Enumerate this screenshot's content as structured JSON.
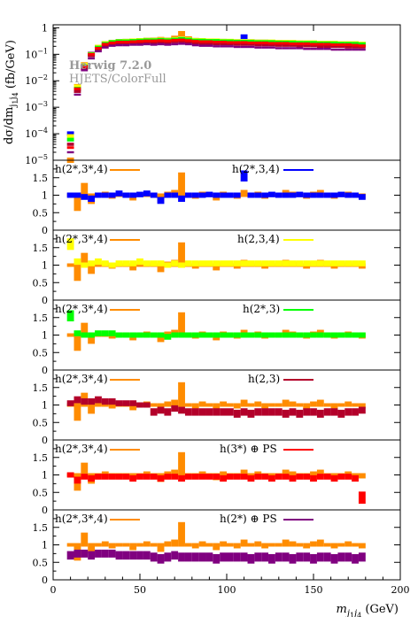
{
  "generator": {
    "line1": "Herwig 7.2.0",
    "line2": "HJETS/ColorFull"
  },
  "colors": {
    "reference": "#ff8c00",
    "blue": "#0000ff",
    "yellow": "#ffff00",
    "green": "#00ff00",
    "crimson": "#b3002a",
    "red": "#ff0000",
    "purple": "#800080"
  },
  "chart_data": [
    {
      "type": "histogram",
      "panel": "main",
      "ylabel": "dσ/dm_{j1 j4} (fb/GeV)",
      "yscale": "log",
      "ylim": [
        1e-05,
        1.3
      ],
      "yticks": [
        "10^{-5}",
        "10^{-4}",
        "10^{-3}",
        "10^{-2}",
        "10^{-1}",
        "1"
      ],
      "xlim": [
        0,
        200
      ],
      "bin_width": 4,
      "x_start": 8,
      "series": [
        {
          "color_key": "reference",
          "values": [
            1e-05,
            0.006,
            0.04,
            0.1,
            0.18,
            0.25,
            0.28,
            0.3,
            0.3,
            0.31,
            0.32,
            0.33,
            0.34,
            0.36,
            0.34,
            0.4,
            0.6,
            0.38,
            0.33,
            0.32,
            0.31,
            0.31,
            0.3,
            0.3,
            0.29,
            0.29,
            0.29,
            0.28,
            0.28,
            0.27,
            0.27,
            0.27,
            0.26,
            0.26,
            0.26,
            0.25,
            0.25,
            0.24,
            0.24,
            0.24,
            0.23,
            0.23,
            0.23
          ]
        },
        {
          "color_key": "blue",
          "values": [
            0.0001,
            0.005,
            0.035,
            0.1,
            0.18,
            0.25,
            0.28,
            0.3,
            0.31,
            0.32,
            0.33,
            0.34,
            0.34,
            0.35,
            0.34,
            0.36,
            0.38,
            0.36,
            0.33,
            0.32,
            0.32,
            0.31,
            0.31,
            0.3,
            0.3,
            0.46,
            0.3,
            0.29,
            0.29,
            0.28,
            0.28,
            0.27,
            0.27,
            0.27,
            0.26,
            0.26,
            0.26,
            0.25,
            0.25,
            0.25,
            0.24,
            0.24,
            0.24
          ]
        },
        {
          "color_key": "yellow",
          "values": [
            8e-05,
            0.006,
            0.04,
            0.1,
            0.19,
            0.26,
            0.29,
            0.31,
            0.32,
            0.33,
            0.34,
            0.35,
            0.35,
            0.36,
            0.35,
            0.37,
            0.39,
            0.37,
            0.34,
            0.34,
            0.33,
            0.33,
            0.32,
            0.32,
            0.31,
            0.31,
            0.31,
            0.3,
            0.3,
            0.3,
            0.29,
            0.29,
            0.29,
            0.28,
            0.28,
            0.28,
            0.27,
            0.27,
            0.27,
            0.26,
            0.26,
            0.26,
            0.25
          ]
        },
        {
          "color_key": "green",
          "values": [
            6e-05,
            0.005,
            0.035,
            0.1,
            0.18,
            0.25,
            0.29,
            0.31,
            0.31,
            0.32,
            0.33,
            0.34,
            0.34,
            0.35,
            0.34,
            0.36,
            0.38,
            0.36,
            0.33,
            0.33,
            0.32,
            0.32,
            0.31,
            0.31,
            0.3,
            0.3,
            0.3,
            0.29,
            0.29,
            0.29,
            0.28,
            0.28,
            0.28,
            0.27,
            0.27,
            0.27,
            0.26,
            0.26,
            0.26,
            0.25,
            0.25,
            0.25,
            0.24
          ]
        },
        {
          "color_key": "crimson",
          "values": [
            4e-05,
            0.004,
            0.03,
            0.09,
            0.16,
            0.22,
            0.25,
            0.27,
            0.27,
            0.28,
            0.28,
            0.29,
            0.28,
            0.29,
            0.28,
            0.3,
            0.31,
            0.29,
            0.27,
            0.26,
            0.26,
            0.25,
            0.25,
            0.25,
            0.24,
            0.24,
            0.24,
            0.23,
            0.23,
            0.23,
            0.22,
            0.22,
            0.22,
            0.21,
            0.21,
            0.21,
            0.2,
            0.2,
            0.2,
            0.2,
            0.19,
            0.19,
            0.19
          ]
        },
        {
          "color_key": "red",
          "values": [
            3e-05,
            0.005,
            0.035,
            0.1,
            0.17,
            0.24,
            0.27,
            0.29,
            0.29,
            0.3,
            0.31,
            0.32,
            0.32,
            0.33,
            0.32,
            0.34,
            0.35,
            0.33,
            0.31,
            0.3,
            0.3,
            0.29,
            0.29,
            0.28,
            0.28,
            0.28,
            0.27,
            0.27,
            0.27,
            0.26,
            0.26,
            0.26,
            0.25,
            0.25,
            0.25,
            0.24,
            0.24,
            0.24,
            0.23,
            0.23,
            0.23,
            0.22,
            0.21
          ]
        },
        {
          "color_key": "purple",
          "values": [
            2e-05,
            0.003,
            0.025,
            0.07,
            0.13,
            0.18,
            0.21,
            0.22,
            0.22,
            0.23,
            0.23,
            0.24,
            0.23,
            0.24,
            0.23,
            0.24,
            0.25,
            0.24,
            0.22,
            0.21,
            0.21,
            0.2,
            0.2,
            0.2,
            0.19,
            0.19,
            0.19,
            0.18,
            0.18,
            0.18,
            0.17,
            0.17,
            0.17,
            0.17,
            0.16,
            0.16,
            0.16,
            0.16,
            0.15,
            0.15,
            0.15,
            0.15,
            0.15
          ]
        }
      ]
    },
    {
      "type": "ratio",
      "panel": "ratio-1",
      "ylim": [
        0,
        2
      ],
      "yticks": [
        "0",
        "0.5",
        "1",
        "1.5"
      ],
      "legend_ref": "h(2*,3*,4)",
      "legend_label": "h(2*,3,4)",
      "reference": [
        1.0,
        0.6,
        1.3,
        0.8,
        1.0,
        1.05,
        0.95,
        1.0,
        1.0,
        0.9,
        1.0,
        1.05,
        1.0,
        0.85,
        1.05,
        1.1,
        1.6,
        1.0,
        0.95,
        1.05,
        1.0,
        0.9,
        1.05,
        1.0,
        0.95,
        1.1,
        1.0,
        1.05,
        0.95,
        1.0,
        1.0,
        1.1,
        1.05,
        1.0,
        0.95,
        1.05,
        1.1,
        1.0,
        0.95,
        1.0,
        1.05,
        1.0,
        0.95
      ],
      "values": [
        1.0,
        1.0,
        0.95,
        0.9,
        1.0,
        1.0,
        1.0,
        1.05,
        1.0,
        1.0,
        1.02,
        1.05,
        1.0,
        0.85,
        1.0,
        1.0,
        0.9,
        1.0,
        1.0,
        1.0,
        1.02,
        1.0,
        1.0,
        1.0,
        1.0,
        1.55,
        1.0,
        1.0,
        1.0,
        1.02,
        1.0,
        1.0,
        1.0,
        1.02,
        1.0,
        1.0,
        1.0,
        1.0,
        1.0,
        1.02,
        1.0,
        1.0,
        0.95
      ]
    },
    {
      "type": "ratio",
      "panel": "ratio-2",
      "ylim": [
        0,
        2
      ],
      "yticks": [
        "0",
        "0.5",
        "1",
        "1.5"
      ],
      "legend_ref": "h(2*,3*,4)",
      "legend_label": "h(2,3,4)",
      "reference": [
        1.0,
        0.6,
        1.3,
        0.8,
        1.0,
        1.05,
        0.95,
        1.0,
        1.0,
        0.9,
        1.0,
        1.05,
        1.0,
        0.85,
        1.05,
        1.1,
        1.6,
        1.0,
        0.95,
        1.05,
        1.0,
        0.9,
        1.05,
        1.0,
        0.95,
        1.1,
        1.0,
        1.05,
        0.95,
        1.0,
        1.0,
        1.1,
        1.05,
        1.0,
        0.95,
        1.05,
        1.1,
        1.0,
        0.95,
        1.0,
        1.05,
        1.0,
        0.95
      ],
      "values": [
        1.6,
        1.1,
        1.0,
        1.05,
        1.1,
        1.05,
        1.0,
        1.05,
        1.05,
        1.05,
        1.1,
        1.05,
        1.05,
        1.05,
        1.0,
        1.05,
        1.0,
        1.05,
        1.05,
        1.05,
        1.05,
        1.05,
        1.05,
        1.05,
        1.05,
        1.05,
        1.05,
        1.05,
        1.05,
        1.05,
        1.05,
        1.05,
        1.05,
        1.05,
        1.05,
        1.05,
        1.05,
        1.05,
        1.05,
        1.05,
        1.05,
        1.05,
        1.05
      ]
    },
    {
      "type": "ratio",
      "panel": "ratio-3",
      "ylim": [
        0,
        2
      ],
      "yticks": [
        "0",
        "0.5",
        "1",
        "1.5"
      ],
      "legend_ref": "h(2*,3*,4)",
      "legend_label": "h(2*,3)",
      "reference": [
        1.0,
        0.6,
        1.3,
        0.8,
        1.0,
        1.05,
        0.95,
        1.0,
        1.0,
        0.9,
        1.0,
        1.05,
        1.0,
        0.85,
        1.05,
        1.1,
        1.6,
        1.0,
        0.95,
        1.05,
        1.0,
        0.9,
        1.05,
        1.0,
        0.95,
        1.1,
        1.0,
        1.05,
        0.95,
        1.0,
        1.0,
        1.1,
        1.05,
        1.0,
        0.95,
        1.05,
        1.1,
        1.0,
        0.95,
        1.0,
        1.05,
        1.0,
        0.95
      ],
      "values": [
        1.55,
        1.05,
        1.0,
        1.0,
        1.05,
        1.05,
        1.05,
        1.0,
        1.0,
        1.0,
        1.0,
        1.0,
        1.0,
        1.0,
        0.95,
        1.0,
        1.0,
        1.0,
        1.0,
        1.0,
        1.0,
        1.0,
        1.0,
        1.0,
        1.0,
        1.0,
        1.0,
        1.0,
        1.0,
        1.0,
        1.0,
        1.0,
        1.0,
        1.0,
        1.0,
        1.0,
        1.0,
        1.0,
        1.0,
        1.0,
        1.0,
        1.0,
        1.0
      ]
    },
    {
      "type": "ratio",
      "panel": "ratio-4",
      "ylim": [
        0,
        2
      ],
      "yticks": [
        "0",
        "0.5",
        "1",
        "1.5"
      ],
      "legend_ref": "h(2*,3*,4)",
      "legend_label": "h(2,3)",
      "reference": [
        1.0,
        0.6,
        1.3,
        0.8,
        1.0,
        1.05,
        0.95,
        1.0,
        1.0,
        0.9,
        1.0,
        1.05,
        1.0,
        0.85,
        1.05,
        1.1,
        1.6,
        1.0,
        0.95,
        1.05,
        1.0,
        0.9,
        1.05,
        1.0,
        0.95,
        1.1,
        1.0,
        1.05,
        0.95,
        1.0,
        1.0,
        1.1,
        1.05,
        1.0,
        0.95,
        1.05,
        1.1,
        1.0,
        0.95,
        1.0,
        1.05,
        1.0,
        0.95
      ],
      "values": [
        1.05,
        1.15,
        1.1,
        1.1,
        1.15,
        1.1,
        1.1,
        1.05,
        1.05,
        1.05,
        1.0,
        1.0,
        0.8,
        0.85,
        0.8,
        0.9,
        0.85,
        0.8,
        0.8,
        0.8,
        0.8,
        0.8,
        0.8,
        0.8,
        0.75,
        0.8,
        0.75,
        0.8,
        0.8,
        0.8,
        0.8,
        0.75,
        0.8,
        0.75,
        0.8,
        0.8,
        0.75,
        0.8,
        0.8,
        0.75,
        0.8,
        0.8,
        0.85
      ]
    },
    {
      "type": "ratio",
      "panel": "ratio-5",
      "ylim": [
        0,
        2
      ],
      "yticks": [
        "0",
        "0.5",
        "1",
        "1.5"
      ],
      "legend_ref": "h(2*,3*,4)",
      "legend_label": "h(3*) ⊕ PS",
      "reference": [
        1.0,
        0.6,
        1.3,
        0.8,
        1.0,
        1.05,
        0.95,
        1.0,
        1.0,
        0.9,
        1.0,
        1.05,
        1.0,
        0.85,
        1.05,
        1.1,
        1.6,
        1.0,
        0.95,
        1.05,
        1.0,
        0.9,
        1.05,
        1.0,
        0.95,
        1.1,
        1.0,
        1.05,
        0.95,
        1.0,
        1.0,
        1.1,
        1.05,
        1.0,
        0.95,
        1.05,
        1.1,
        1.0,
        0.95,
        1.0,
        1.05,
        1.0,
        0.95
      ],
      "values": [
        1.0,
        0.85,
        0.95,
        0.9,
        0.95,
        0.95,
        0.95,
        0.95,
        0.95,
        0.9,
        0.95,
        0.95,
        0.95,
        0.9,
        0.95,
        0.95,
        0.9,
        0.95,
        0.95,
        0.95,
        0.95,
        0.95,
        0.9,
        0.95,
        0.95,
        0.95,
        0.9,
        0.95,
        0.95,
        0.9,
        0.95,
        0.95,
        0.9,
        0.95,
        0.95,
        0.9,
        0.95,
        0.95,
        0.9,
        0.95,
        0.95,
        0.9,
        0.35
      ]
    },
    {
      "type": "ratio",
      "panel": "ratio-6",
      "ylim": [
        0,
        2
      ],
      "yticks": [
        "0",
        "0.5",
        "1",
        "1.5"
      ],
      "legend_ref": "h(2*,3*,4)",
      "legend_label": "h(2*) ⊕ PS",
      "reference": [
        1.0,
        0.6,
        1.3,
        0.8,
        1.0,
        1.05,
        0.95,
        1.0,
        1.0,
        0.9,
        1.0,
        1.05,
        1.0,
        0.85,
        1.05,
        1.1,
        1.6,
        1.0,
        0.95,
        1.05,
        1.0,
        0.9,
        1.05,
        1.0,
        0.95,
        1.1,
        1.0,
        1.05,
        0.95,
        1.0,
        1.0,
        1.1,
        1.05,
        1.0,
        0.95,
        1.05,
        1.1,
        1.0,
        0.95,
        1.0,
        1.05,
        1.0,
        0.95
      ],
      "values": [
        0.7,
        0.75,
        0.75,
        0.7,
        0.75,
        0.75,
        0.75,
        0.7,
        0.7,
        0.7,
        0.7,
        0.7,
        0.65,
        0.6,
        0.65,
        0.7,
        0.65,
        0.65,
        0.65,
        0.65,
        0.65,
        0.6,
        0.65,
        0.65,
        0.65,
        0.65,
        0.6,
        0.65,
        0.65,
        0.6,
        0.65,
        0.65,
        0.6,
        0.65,
        0.65,
        0.6,
        0.65,
        0.65,
        0.6,
        0.65,
        0.65,
        0.6,
        0.65
      ]
    },
    {
      "type": "axis",
      "panel": "x-axis",
      "xlabel": "m_{j1 j4} (GeV)",
      "xticks": [
        "0",
        "50",
        "100",
        "150",
        "200"
      ]
    }
  ]
}
